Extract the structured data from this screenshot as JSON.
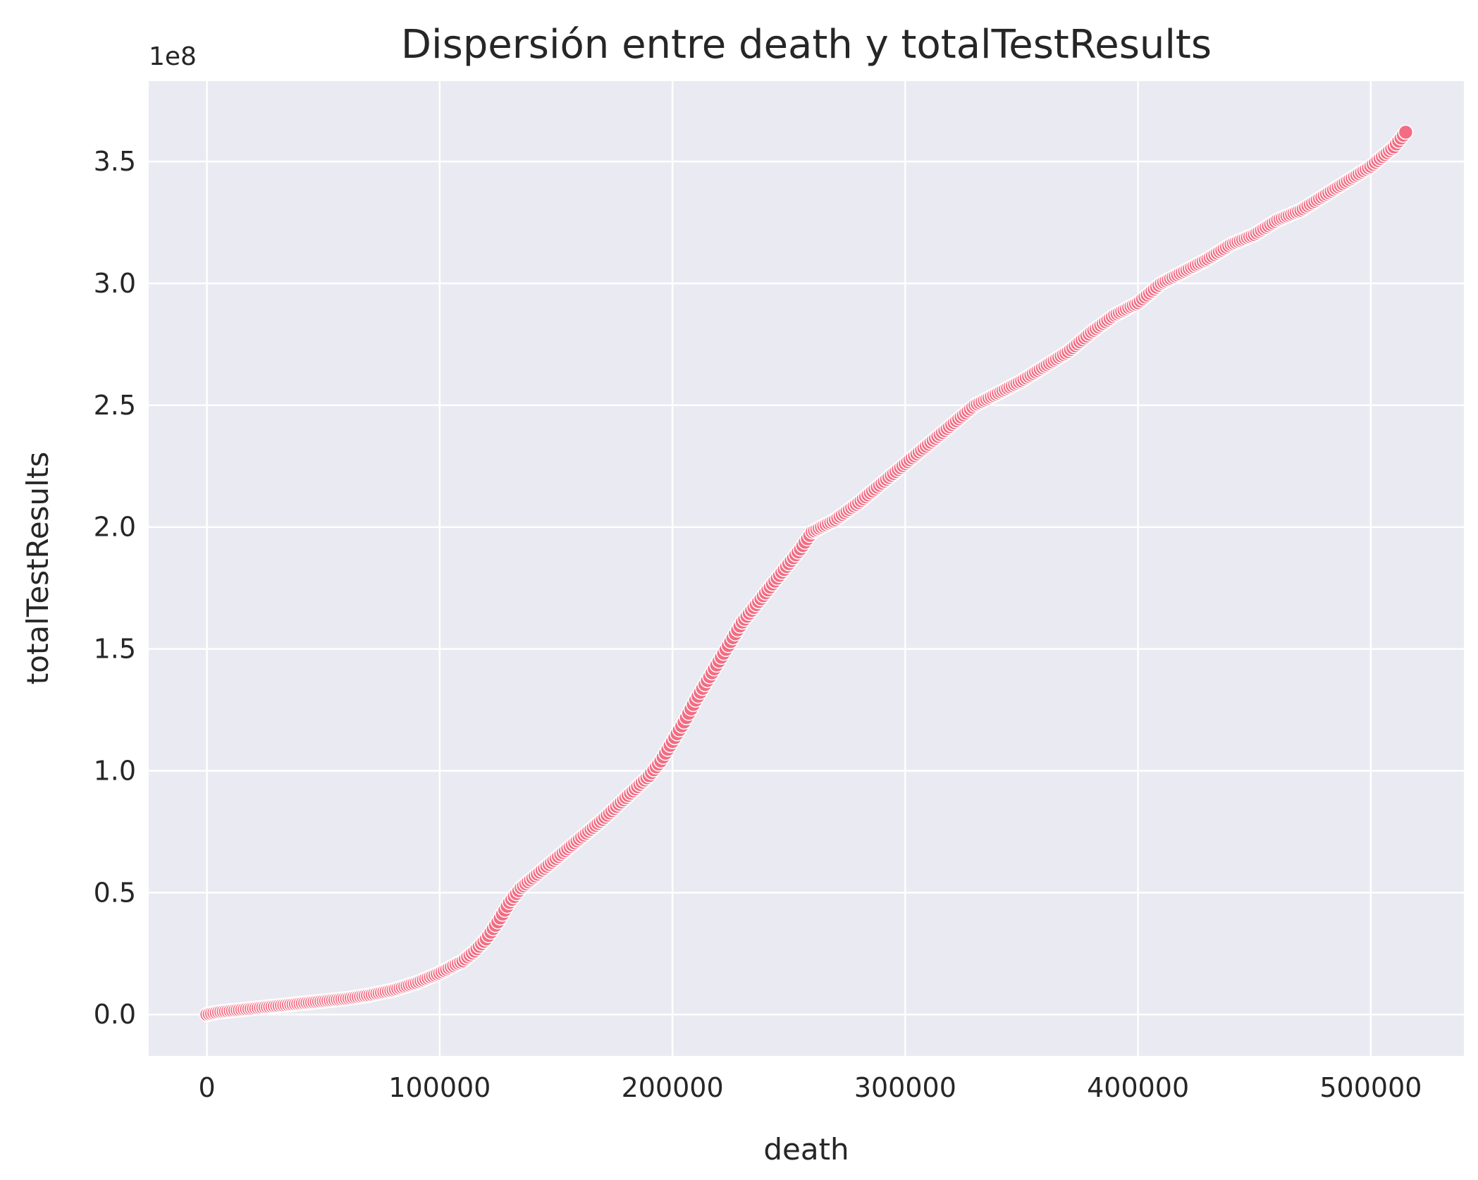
{
  "chart_data": {
    "type": "scatter",
    "title": "Dispersión entre death y totalTestResults",
    "xlabel": "death",
    "ylabel": "totalTestResults",
    "y_offset_label": "1e8",
    "xlim": [
      -25000,
      540000
    ],
    "ylim": [
      -0.17,
      3.83
    ],
    "y_units": "1e8",
    "grid": true,
    "background": "#eaeaf2",
    "grid_color": "#ffffff",
    "marker_color": "#f26d84",
    "marker_edge": "#ffffff",
    "x_ticks": [
      0,
      100000,
      200000,
      300000,
      400000,
      500000
    ],
    "x_tick_labels": [
      "0",
      "100000",
      "200000",
      "300000",
      "400000",
      "500000"
    ],
    "y_ticks": [
      0.0,
      0.5,
      1.0,
      1.5,
      2.0,
      2.5,
      3.0,
      3.5
    ],
    "y_tick_labels": [
      "0.0",
      "0.5",
      "1.0",
      "1.5",
      "2.0",
      "2.5",
      "3.0",
      "3.5"
    ],
    "series": [
      {
        "x": [
          0,
          5000,
          10000,
          20000,
          30000,
          40000,
          50000,
          60000,
          70000,
          80000,
          90000,
          100000,
          110000,
          115000,
          120000,
          125000,
          130000,
          135000,
          140000,
          150000,
          160000,
          170000,
          180000,
          190000,
          195000,
          200000,
          205000,
          210000,
          215000,
          220000,
          225000,
          230000,
          235000,
          240000,
          245000,
          250000,
          255000,
          260000,
          270000,
          280000,
          290000,
          300000,
          310000,
          320000,
          330000,
          340000,
          350000,
          360000,
          370000,
          380000,
          390000,
          400000,
          410000,
          420000,
          430000,
          440000,
          450000,
          460000,
          470000,
          480000,
          490000,
          500000,
          510000,
          515000
        ],
        "y": [
          0.0,
          0.01,
          0.015,
          0.025,
          0.035,
          0.045,
          0.055,
          0.065,
          0.08,
          0.1,
          0.13,
          0.17,
          0.22,
          0.26,
          0.31,
          0.38,
          0.46,
          0.52,
          0.56,
          0.64,
          0.72,
          0.8,
          0.89,
          0.98,
          1.04,
          1.12,
          1.2,
          1.29,
          1.37,
          1.45,
          1.53,
          1.61,
          1.67,
          1.73,
          1.79,
          1.85,
          1.91,
          1.98,
          2.03,
          2.1,
          2.18,
          2.26,
          2.34,
          2.42,
          2.5,
          2.55,
          2.6,
          2.66,
          2.72,
          2.8,
          2.87,
          2.92,
          3.0,
          3.05,
          3.1,
          3.16,
          3.2,
          3.26,
          3.3,
          3.36,
          3.42,
          3.48,
          3.56,
          3.62
        ]
      }
    ]
  }
}
